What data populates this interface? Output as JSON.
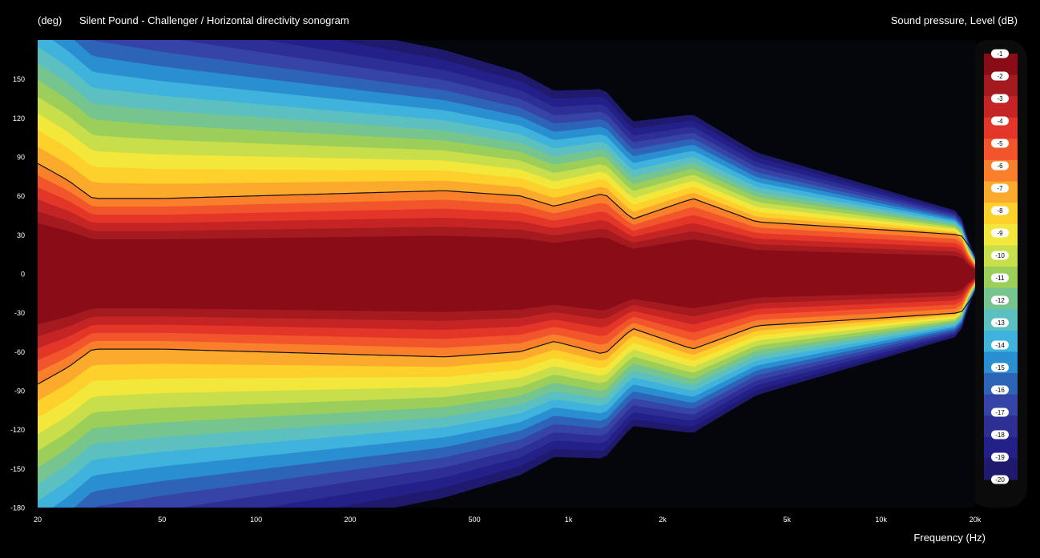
{
  "chart_data": {
    "type": "heatmap",
    "title": "Silent Pound - Challenger / Horizontal directivity sonogram",
    "ylabel": "(deg)",
    "xlabel": "Frequency (Hz)",
    "colorbar_label": "Sound pressure, Level (dB)",
    "x_scale": "log",
    "xlim": [
      20,
      20000
    ],
    "ylim": [
      -180,
      180
    ],
    "x_ticks": [
      {
        "value": 20,
        "label": "20"
      },
      {
        "value": 50,
        "label": "50"
      },
      {
        "value": 100,
        "label": "100"
      },
      {
        "value": 200,
        "label": "200"
      },
      {
        "value": 500,
        "label": "500"
      },
      {
        "value": 1000,
        "label": "1k"
      },
      {
        "value": 2000,
        "label": "2k"
      },
      {
        "value": 5000,
        "label": "5k"
      },
      {
        "value": 10000,
        "label": "10k"
      },
      {
        "value": 20000,
        "label": "20k"
      }
    ],
    "y_ticks": [
      150,
      120,
      90,
      60,
      30,
      0,
      -30,
      -60,
      -90,
      -120,
      -150,
      -180
    ],
    "levels": [
      -1,
      -2,
      -3,
      -4,
      -5,
      -6,
      -7,
      -8,
      -9,
      -10,
      -11,
      -12,
      -13,
      -14,
      -15,
      -16,
      -17,
      -18,
      -19,
      -20
    ],
    "colors": [
      "#8a0c17",
      "#a41a1f",
      "#c42424",
      "#e33628",
      "#f2552b",
      "#f97f2a",
      "#fcaa2b",
      "#fdd02c",
      "#f2e73a",
      "#c8de4a",
      "#9ccf5a",
      "#76c48e",
      "#5cc0c0",
      "#3fb3db",
      "#2a8fd0",
      "#2d64b7",
      "#3544a6",
      "#2e2f95",
      "#242089",
      "#1f1a6e"
    ],
    "beamwidth_6dB_deg": [
      {
        "freq": 20,
        "half_angle": 85
      },
      {
        "freq": 25,
        "half_angle": 72
      },
      {
        "freq": 30,
        "half_angle": 58
      },
      {
        "freq": 50,
        "half_angle": 58
      },
      {
        "freq": 100,
        "half_angle": 60
      },
      {
        "freq": 200,
        "half_angle": 62
      },
      {
        "freq": 400,
        "half_angle": 64
      },
      {
        "freq": 700,
        "half_angle": 60
      },
      {
        "freq": 900,
        "half_angle": 52
      },
      {
        "freq": 1300,
        "half_angle": 62
      },
      {
        "freq": 1600,
        "half_angle": 42
      },
      {
        "freq": 2500,
        "half_angle": 58
      },
      {
        "freq": 4000,
        "half_angle": 40
      },
      {
        "freq": 10000,
        "half_angle": 34
      },
      {
        "freq": 18000,
        "half_angle": 30
      },
      {
        "freq": 20000,
        "half_angle": 15
      }
    ]
  }
}
